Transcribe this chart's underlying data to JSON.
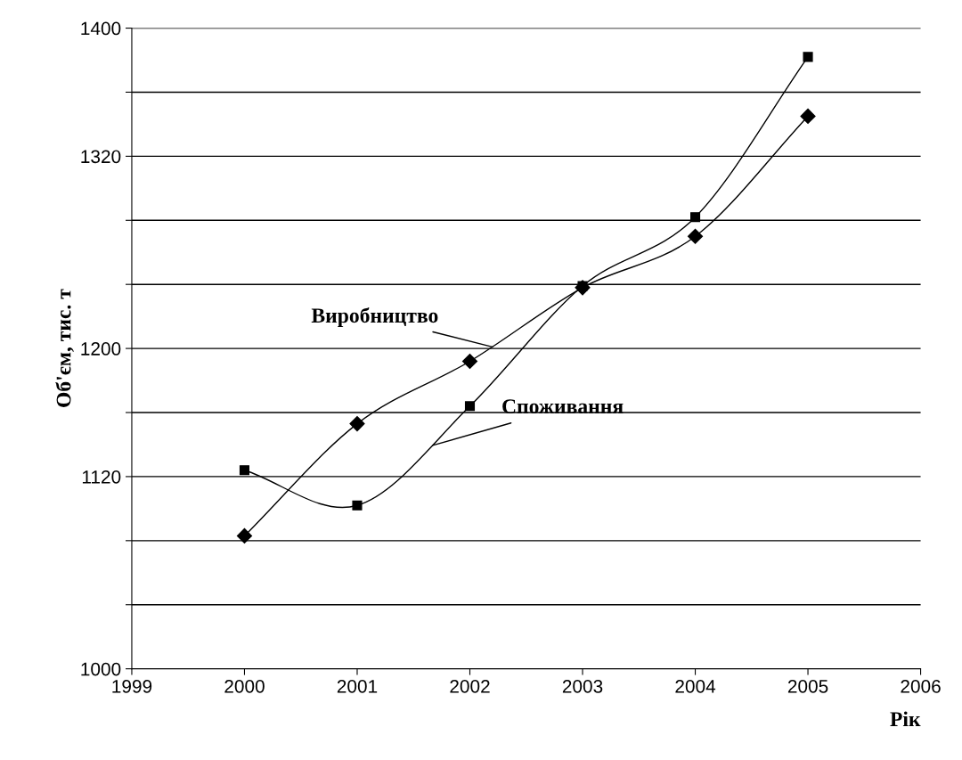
{
  "chart_data": {
    "type": "line",
    "xlabel": "Рік",
    "ylabel": "Об'єм, тис. т",
    "x": [
      2000,
      2001,
      2002,
      2003,
      2004,
      2005
    ],
    "series": [
      {
        "name": "Виробництво",
        "color": "#000000",
        "marker": "diamond",
        "values": [
          1083,
          1153,
          1192,
          1238,
          1270,
          1345
        ]
      },
      {
        "name": "Споживання",
        "color": "#000000",
        "marker": "square",
        "values": [
          1124,
          1102,
          1164,
          1239,
          1282,
          1382
        ]
      }
    ],
    "xlim": [
      1999,
      2006
    ],
    "xticks": [
      1999,
      2000,
      2001,
      2002,
      2003,
      2004,
      2005,
      2006
    ],
    "ylim": [
      1000,
      1400
    ],
    "yticks": [
      1000,
      {
        "value": 1040,
        "label": null
      },
      {
        "value": 1080,
        "label": null
      },
      1120,
      {
        "value": 1160,
        "label": null
      },
      1200,
      {
        "value": 1240,
        "label": null
      },
      {
        "value": 1280,
        "label": null
      },
      1320,
      {
        "value": 1360,
        "label": null
      },
      1400
    ],
    "grid": "y",
    "legend": false,
    "line_style": "solid"
  }
}
